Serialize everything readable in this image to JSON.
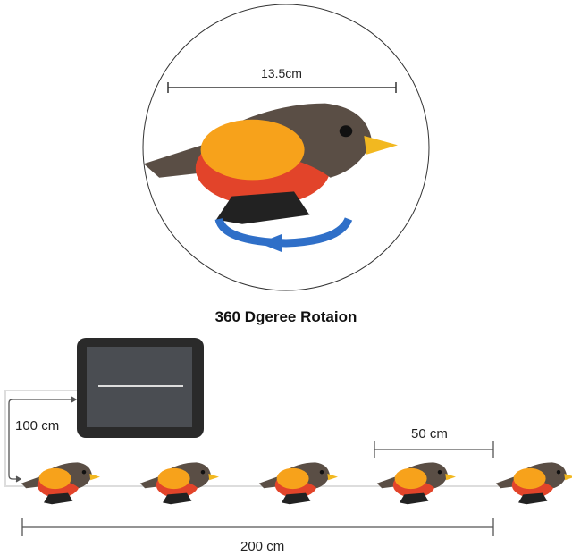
{
  "top_view": {
    "width_label": "13.5cm"
  },
  "caption": "360 Dgeree Rotaion",
  "bottom_view": {
    "lead_length_label": "100 cm",
    "spacing_label": "50 cm",
    "total_length_label": "200 cm",
    "bird_count": 5
  },
  "colors": {
    "bird_orange": "#f7a21b",
    "bird_red": "#e2442a",
    "bird_brown": "#5a4e45",
    "beak": "#f2b820",
    "arrow_blue": "#2f6fc8"
  }
}
